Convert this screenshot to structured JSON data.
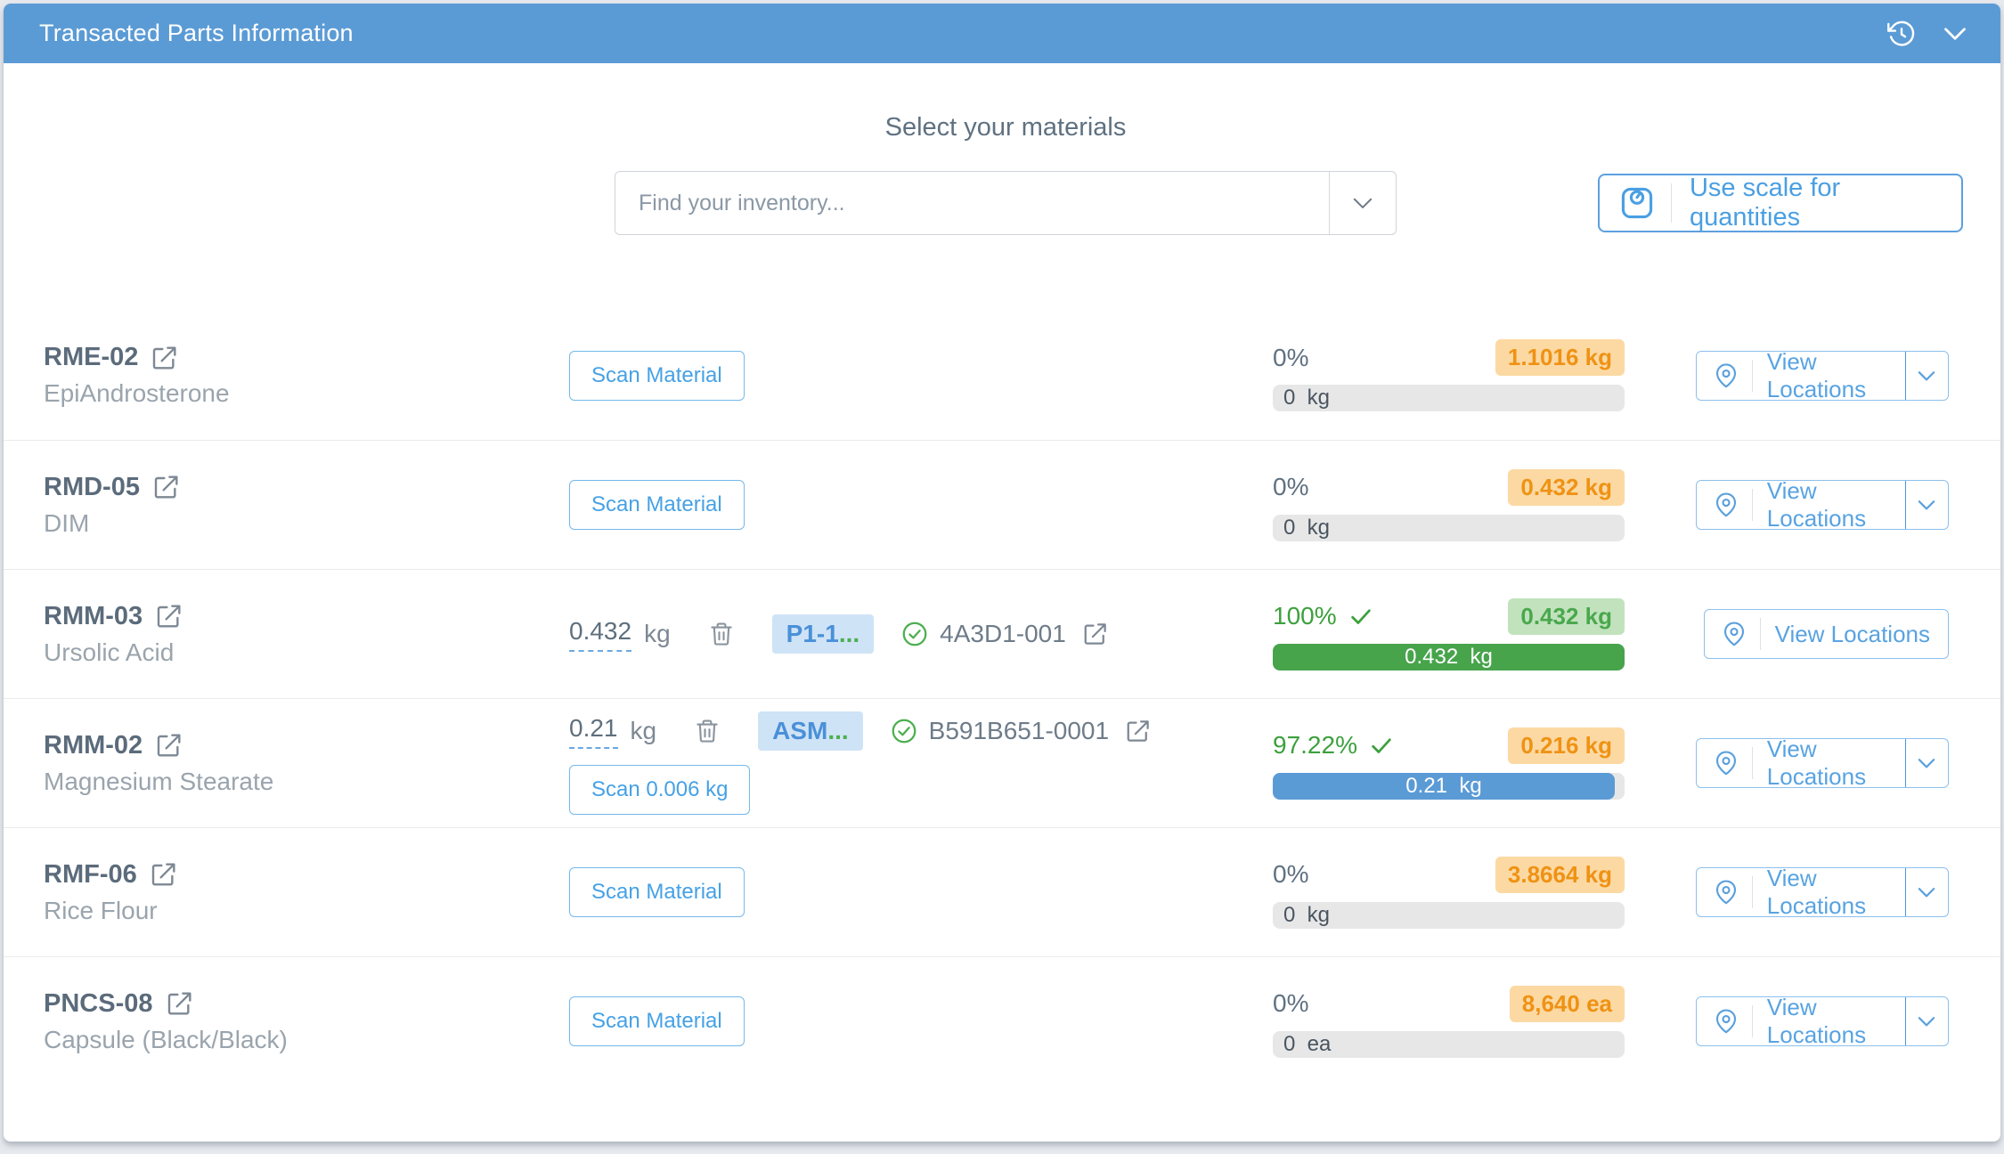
{
  "panel": {
    "title": "Transacted Parts Information",
    "header_icons": [
      "history-icon",
      "collapse-chevron-icon"
    ]
  },
  "picker": {
    "heading": "Select your materials",
    "search_placeholder": "Find your inventory...",
    "scale_button_label": "Use scale for quantities"
  },
  "colors": {
    "header_blue": "#5b9bd5",
    "accent_blue": "#4a9fe2",
    "badge_orange_bg": "#fcd9a3",
    "badge_orange_text": "#ef9214",
    "badge_green_bg": "#c2e2bd",
    "badge_green_text": "#49a84d",
    "bar_green": "#47a44b",
    "bar_blue": "#5b9bd5",
    "bar_track": "#e7e7e7",
    "success_green": "#3da03d",
    "lot_badge_bg": "#cfe3f6"
  },
  "rows": [
    {
      "code": "RME-02",
      "name": "EpiAndrosterone",
      "scan_label": "Scan Material",
      "percent": "0%",
      "done": false,
      "badge": "1.1016 kg",
      "badge_color": "orange",
      "bar_style": "empty",
      "bar_fill": 0,
      "bar_label": "0  kg",
      "loc_label": "View Locations",
      "loc_dropdown": true
    },
    {
      "code": "RMD-05",
      "name": "DIM",
      "scan_label": "Scan Material",
      "percent": "0%",
      "done": false,
      "badge": "0.432 kg",
      "badge_color": "orange",
      "bar_style": "empty",
      "bar_fill": 0,
      "bar_label": "0  kg",
      "loc_label": "View Locations",
      "loc_dropdown": true
    },
    {
      "code": "RMM-03",
      "name": "Ursolic Acid",
      "lot": {
        "qty": "0.432",
        "unit": "kg",
        "badge_text": "P1-1",
        "badge_ellipsis": "...",
        "lot_code": "4A3D1-001"
      },
      "percent": "100%",
      "done": true,
      "badge": "0.432 kg",
      "badge_color": "green",
      "bar_style": "green",
      "bar_fill": 100,
      "bar_label": "0.432  kg",
      "loc_label": "View Locations",
      "loc_dropdown": false
    },
    {
      "code": "RMM-02",
      "name": "Magnesium Stearate",
      "lot": {
        "qty": "0.21",
        "unit": "kg",
        "badge_text": "ASM",
        "badge_ellipsis": "...",
        "lot_code": "B591B651-0001"
      },
      "scan_label": "Scan 0.006 kg",
      "percent": "97.22%",
      "done": true,
      "badge": "0.216 kg",
      "badge_color": "orange",
      "bar_style": "blue",
      "bar_fill": 97.22,
      "bar_label": "0.21  kg",
      "loc_label": "View Locations",
      "loc_dropdown": true
    },
    {
      "code": "RMF-06",
      "name": "Rice Flour",
      "scan_label": "Scan Material",
      "percent": "0%",
      "done": false,
      "badge": "3.8664 kg",
      "badge_color": "orange",
      "bar_style": "empty",
      "bar_fill": 0,
      "bar_label": "0  kg",
      "loc_label": "View Locations",
      "loc_dropdown": true
    },
    {
      "code": "PNCS-08",
      "name": "Capsule (Black/Black)",
      "scan_label": "Scan Material",
      "percent": "0%",
      "done": false,
      "badge": "8,640 ea",
      "badge_color": "orange",
      "bar_style": "empty",
      "bar_fill": 0,
      "bar_label": "0  ea",
      "loc_label": "View Locations",
      "loc_dropdown": true
    }
  ]
}
